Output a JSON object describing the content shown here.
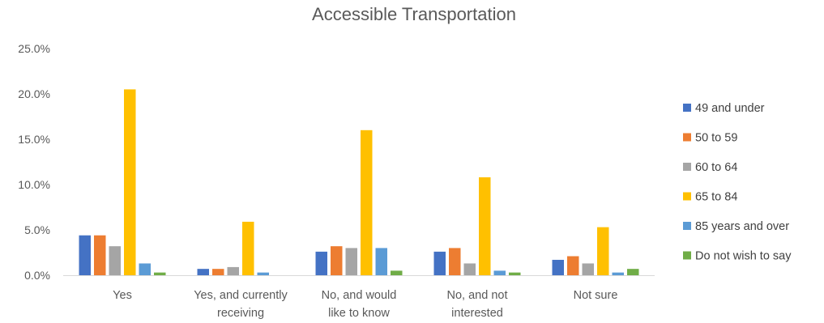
{
  "chart_data": {
    "type": "bar",
    "title": "Accessible Transportation",
    "xlabel": "",
    "ylabel": "",
    "ylim": [
      0,
      25
    ],
    "y_ticks": [
      0,
      5,
      10,
      15,
      20,
      25
    ],
    "y_tick_labels": [
      "0.0%",
      "5.0%",
      "10.0%",
      "15.0%",
      "20.0%",
      "25.0%"
    ],
    "grid": false,
    "legend_position": "right",
    "categories": [
      [
        "Yes"
      ],
      [
        "Yes, and currently",
        "receiving"
      ],
      [
        "No, and would",
        "like to know"
      ],
      [
        "No, and not",
        "interested"
      ],
      [
        "Not sure"
      ]
    ],
    "series": [
      {
        "name": "49 and under",
        "color": "#4472C4",
        "values": [
          4.4,
          0.7,
          2.6,
          2.6,
          1.7
        ]
      },
      {
        "name": "50 to 59",
        "color": "#ED7D31",
        "values": [
          4.4,
          0.7,
          3.2,
          3.0,
          2.1
        ]
      },
      {
        "name": "60 to 64",
        "color": "#A5A5A5",
        "values": [
          3.2,
          0.9,
          3.0,
          1.3,
          1.3
        ]
      },
      {
        "name": "65 to 84",
        "color": "#FFC000",
        "values": [
          20.5,
          5.9,
          16.0,
          10.8,
          5.3
        ]
      },
      {
        "name": "85 years and over",
        "color": "#5B9BD5",
        "values": [
          1.3,
          0.3,
          3.0,
          0.5,
          0.3
        ]
      },
      {
        "name": "Do not wish to say",
        "color": "#70AD47",
        "values": [
          0.3,
          0.0,
          0.5,
          0.3,
          0.7
        ]
      }
    ]
  }
}
